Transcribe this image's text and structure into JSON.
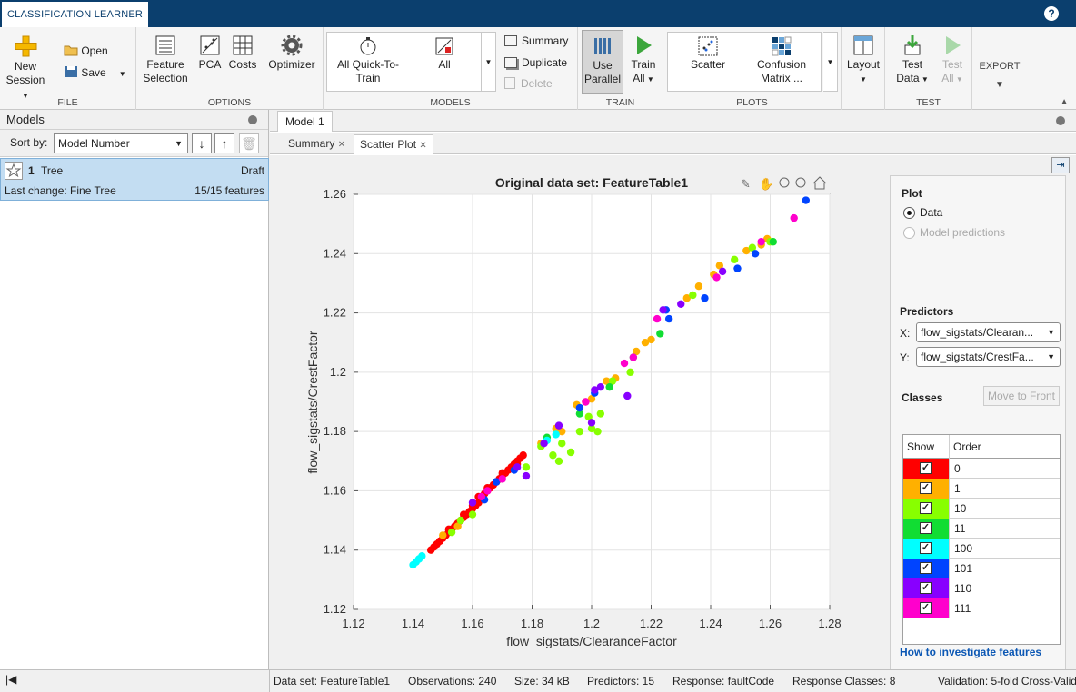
{
  "app": {
    "tab": "CLASSIFICATION LEARNER",
    "help": "?"
  },
  "ribbon": {
    "file": {
      "label": "FILE",
      "new_session": [
        "New",
        "Session"
      ],
      "open": "Open",
      "save": "Save"
    },
    "options": {
      "label": "OPTIONS",
      "feature_selection": [
        "Feature",
        "Selection"
      ],
      "pca": "PCA",
      "costs": "Costs",
      "optimizer": "Optimizer"
    },
    "models": {
      "label": "MODELS",
      "all_quick": [
        "All Quick-To-",
        "Train"
      ],
      "all": "All",
      "summary": "Summary",
      "duplicate": "Duplicate",
      "delete": "Delete"
    },
    "train": {
      "label": "TRAIN",
      "use_parallel": [
        "Use",
        "Parallel"
      ],
      "train_all": [
        "Train",
        "All"
      ]
    },
    "plots": {
      "label": "PLOTS",
      "scatter": "Scatter",
      "confusion": [
        "Confusion",
        "Matrix ..."
      ]
    },
    "layout": {
      "label": "Layout"
    },
    "test": {
      "label": "TEST",
      "test_data": [
        "Test",
        "Data"
      ],
      "test_all": [
        "Test",
        "All"
      ]
    },
    "export": {
      "label": "EXPORT"
    }
  },
  "models_panel": {
    "title": "Models",
    "sort_label": "Sort by:",
    "sort_value": "Model Number",
    "model": {
      "number": "1",
      "name": "Tree",
      "status": "Draft",
      "last_change": "Last change: Fine Tree",
      "features": "15/15 features"
    }
  },
  "doc_tab": "Model 1",
  "subtabs": [
    "Summary",
    "Scatter Plot"
  ],
  "chart_data": {
    "type": "scatter",
    "title": "Original data set: FeatureTable1",
    "xlabel": "flow_sigstats/ClearanceFactor",
    "ylabel": "flow_sigstats/CrestFactor",
    "xlim": [
      1.12,
      1.28
    ],
    "ylim": [
      1.12,
      1.26
    ],
    "xticks": [
      "1.12",
      "1.14",
      "1.16",
      "1.18",
      "1.2",
      "1.22",
      "1.24",
      "1.26",
      "1.28"
    ],
    "yticks": [
      "1.12",
      "1.14",
      "1.16",
      "1.18",
      "1.2",
      "1.22",
      "1.24",
      "1.26"
    ],
    "grid": true,
    "series": [
      {
        "name": "0",
        "color": "#ff0000",
        "points": [
          [
            1.146,
            1.14
          ],
          [
            1.147,
            1.141
          ],
          [
            1.148,
            1.142
          ],
          [
            1.149,
            1.143
          ],
          [
            1.15,
            1.144
          ],
          [
            1.151,
            1.145
          ],
          [
            1.152,
            1.146
          ],
          [
            1.153,
            1.147
          ],
          [
            1.154,
            1.148
          ],
          [
            1.155,
            1.149
          ],
          [
            1.156,
            1.15
          ],
          [
            1.157,
            1.151
          ],
          [
            1.158,
            1.152
          ],
          [
            1.159,
            1.153
          ],
          [
            1.16,
            1.154
          ],
          [
            1.161,
            1.155
          ],
          [
            1.162,
            1.156
          ],
          [
            1.163,
            1.158
          ],
          [
            1.164,
            1.159
          ],
          [
            1.165,
            1.16
          ],
          [
            1.166,
            1.161
          ],
          [
            1.167,
            1.162
          ],
          [
            1.168,
            1.163
          ],
          [
            1.169,
            1.164
          ],
          [
            1.17,
            1.165
          ],
          [
            1.171,
            1.166
          ],
          [
            1.172,
            1.167
          ],
          [
            1.173,
            1.168
          ],
          [
            1.174,
            1.169
          ],
          [
            1.175,
            1.17
          ],
          [
            1.176,
            1.171
          ],
          [
            1.177,
            1.172
          ],
          [
            1.16,
            1.155
          ],
          [
            1.165,
            1.161
          ],
          [
            1.17,
            1.166
          ],
          [
            1.175,
            1.169
          ],
          [
            1.162,
            1.158
          ],
          [
            1.157,
            1.152
          ],
          [
            1.152,
            1.147
          ],
          [
            1.168,
            1.163
          ]
        ]
      },
      {
        "name": "1",
        "color": "#ffb000",
        "points": [
          [
            1.15,
            1.145
          ],
          [
            1.155,
            1.148
          ],
          [
            1.183,
            1.176
          ],
          [
            1.19,
            1.18
          ],
          [
            1.198,
            1.19
          ],
          [
            1.205,
            1.197
          ],
          [
            1.208,
            1.198
          ],
          [
            1.218,
            1.21
          ],
          [
            1.22,
            1.211
          ],
          [
            1.232,
            1.225
          ],
          [
            1.241,
            1.233
          ],
          [
            1.243,
            1.236
          ],
          [
            1.252,
            1.241
          ],
          [
            1.259,
            1.245
          ],
          [
            1.188,
            1.181
          ],
          [
            1.2,
            1.191
          ],
          [
            1.215,
            1.207
          ],
          [
            1.257,
            1.243
          ],
          [
            1.236,
            1.229
          ],
          [
            1.195,
            1.189
          ]
        ]
      },
      {
        "name": "10",
        "color": "#88ff00",
        "points": [
          [
            1.153,
            1.146
          ],
          [
            1.156,
            1.15
          ],
          [
            1.16,
            1.152
          ],
          [
            1.178,
            1.168
          ],
          [
            1.183,
            1.175
          ],
          [
            1.187,
            1.172
          ],
          [
            1.189,
            1.17
          ],
          [
            1.193,
            1.173
          ],
          [
            1.196,
            1.18
          ],
          [
            1.2,
            1.181
          ],
          [
            1.202,
            1.18
          ],
          [
            1.203,
            1.186
          ],
          [
            1.207,
            1.197
          ],
          [
            1.213,
            1.2
          ],
          [
            1.234,
            1.226
          ],
          [
            1.248,
            1.238
          ],
          [
            1.254,
            1.242
          ],
          [
            1.26,
            1.244
          ],
          [
            1.19,
            1.176
          ],
          [
            1.199,
            1.185
          ]
        ]
      },
      {
        "name": "11",
        "color": "#11dd33",
        "points": [
          [
            1.185,
            1.178
          ],
          [
            1.206,
            1.195
          ],
          [
            1.223,
            1.213
          ],
          [
            1.261,
            1.244
          ],
          [
            1.196,
            1.186
          ],
          [
            1.214,
            1.205
          ]
        ]
      },
      {
        "name": "100",
        "color": "#00ffff",
        "points": [
          [
            1.14,
            1.135
          ],
          [
            1.141,
            1.136
          ],
          [
            1.142,
            1.137
          ],
          [
            1.143,
            1.138
          ],
          [
            1.185,
            1.177
          ],
          [
            1.188,
            1.179
          ]
        ]
      },
      {
        "name": "101",
        "color": "#0044ff",
        "points": [
          [
            1.164,
            1.157
          ],
          [
            1.168,
            1.163
          ],
          [
            1.174,
            1.167
          ],
          [
            1.196,
            1.188
          ],
          [
            1.201,
            1.193
          ],
          [
            1.226,
            1.218
          ],
          [
            1.238,
            1.225
          ],
          [
            1.249,
            1.235
          ],
          [
            1.255,
            1.24
          ],
          [
            1.272,
            1.258
          ],
          [
            1.225,
            1.221
          ]
        ]
      },
      {
        "name": "110",
        "color": "#8800ff",
        "points": [
          [
            1.16,
            1.156
          ],
          [
            1.175,
            1.168
          ],
          [
            1.178,
            1.165
          ],
          [
            1.184,
            1.176
          ],
          [
            1.2,
            1.183
          ],
          [
            1.203,
            1.195
          ],
          [
            1.212,
            1.192
          ],
          [
            1.224,
            1.221
          ],
          [
            1.23,
            1.223
          ],
          [
            1.244,
            1.234
          ],
          [
            1.189,
            1.182
          ],
          [
            1.201,
            1.194
          ]
        ]
      },
      {
        "name": "111",
        "color": "#ff00cc",
        "points": [
          [
            1.163,
            1.158
          ],
          [
            1.165,
            1.16
          ],
          [
            1.17,
            1.164
          ],
          [
            1.198,
            1.19
          ],
          [
            1.214,
            1.205
          ],
          [
            1.222,
            1.218
          ],
          [
            1.242,
            1.232
          ],
          [
            1.268,
            1.252
          ],
          [
            1.257,
            1.244
          ],
          [
            1.211,
            1.203
          ]
        ]
      }
    ]
  },
  "sidepanel": {
    "plot_heading": "Plot",
    "radio_data": "Data",
    "radio_predictions": "Model predictions",
    "predictors_heading": "Predictors",
    "x_label": "X:",
    "x_value": "flow_sigstats/Clearan...",
    "y_label": "Y:",
    "y_value": "flow_sigstats/CrestFa...",
    "classes_heading": "Classes",
    "move_to_front": "Move to Front",
    "col_show": "Show",
    "col_order": "Order",
    "classes": [
      {
        "name": "0",
        "color": "#ff0000"
      },
      {
        "name": "1",
        "color": "#ffb000"
      },
      {
        "name": "10",
        "color": "#88ff00"
      },
      {
        "name": "11",
        "color": "#11dd33"
      },
      {
        "name": "100",
        "color": "#00ffff"
      },
      {
        "name": "101",
        "color": "#0044ff"
      },
      {
        "name": "110",
        "color": "#8800ff"
      },
      {
        "name": "111",
        "color": "#ff00cc"
      }
    ],
    "link": "How to investigate features"
  },
  "status": {
    "dataset": "Data set: FeatureTable1",
    "observations": "Observations: 240",
    "size": "Size: 34 kB",
    "predictors": "Predictors: 15",
    "response": "Response: faultCode",
    "response_classes": "Response Classes: 8",
    "validation": "Validation: 5-fold Cross-Valid"
  }
}
